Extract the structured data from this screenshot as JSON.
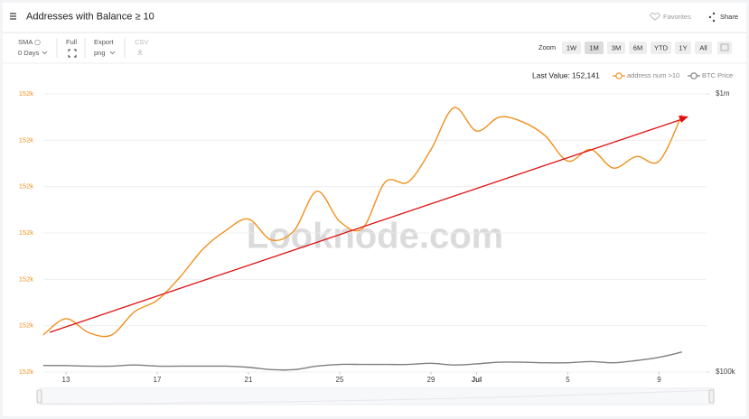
{
  "header": {
    "title": "Addresses with Balance ≥ 10",
    "favorites": "Favorites",
    "share": "Share"
  },
  "toolbar": {
    "sma": "SMA",
    "sma_value": "0 Days",
    "full": "Full",
    "export": "Export",
    "export_format": "png",
    "csv": "CSV",
    "zoom": "Zoom",
    "zoom_buttons": [
      "1W",
      "1M",
      "3M",
      "6M",
      "YTD",
      "1Y",
      "All"
    ],
    "zoom_selected": "1M"
  },
  "chart_data": {
    "type": "line",
    "watermark": "Looknode.com",
    "last_value_label": "Last Value:",
    "last_value": "152,141",
    "categories": [
      null,
      "13",
      null,
      null,
      null,
      "17",
      null,
      null,
      null,
      "21",
      null,
      null,
      null,
      "25",
      null,
      null,
      null,
      "29",
      null,
      "Jul",
      null,
      null,
      null,
      "5",
      null,
      null,
      null,
      "9",
      null
    ],
    "series": [
      {
        "name": "address num >10",
        "color": "#f0901e",
        "axis": "y",
        "values": [
          152046,
          152053,
          152047,
          152046,
          152056,
          152061,
          152071,
          152083,
          152091,
          152096,
          152087,
          152091,
          152108,
          152095,
          152092,
          152112,
          152112,
          152126,
          152144,
          152134,
          152140,
          152138,
          152132,
          152121,
          152126,
          152118,
          152123,
          152121,
          152141
        ]
      },
      {
        "name": "BTC Price",
        "color": "#7f7f7f",
        "axis": "y2",
        "values": [
          105500,
          105500,
          105000,
          105000,
          106000,
          105000,
          105000,
          105000,
          105000,
          104000,
          102000,
          102000,
          105000,
          106500,
          106500,
          106500,
          106500,
          107500,
          106000,
          107000,
          108500,
          108500,
          108000,
          108000,
          109000,
          108000,
          110000,
          113000,
          118000
        ]
      }
    ],
    "ylim": [
      152030,
      152150
    ],
    "yticks": [
      {
        "value": 152030,
        "label": "152k"
      },
      {
        "value": 152050,
        "label": "152k"
      },
      {
        "value": 152070,
        "label": "152k"
      },
      {
        "value": 152090,
        "label": "152k"
      },
      {
        "value": 152110,
        "label": "152k"
      },
      {
        "value": 152130,
        "label": "152k"
      },
      {
        "value": 152150,
        "label": "152k"
      }
    ],
    "y2lim": [
      100000,
      1000000
    ],
    "y2ticks": [
      {
        "value": 100000,
        "label": "$100k"
      },
      {
        "value": 1000000,
        "label": "$1m"
      }
    ],
    "y2_log": true,
    "grid": true
  }
}
